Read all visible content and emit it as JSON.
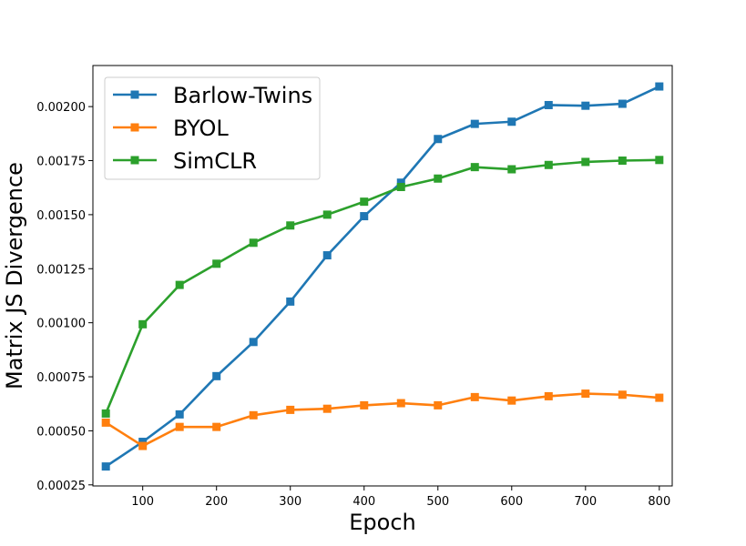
{
  "chart_data": {
    "type": "line",
    "xlabel": "Epoch",
    "ylabel": "Matrix JS Divergence",
    "xlim": [
      32.5,
      817.5
    ],
    "ylim": [
      0.000245,
      0.00219
    ],
    "xticks": [
      100,
      200,
      300,
      400,
      500,
      600,
      700,
      800
    ],
    "yticks": [
      0.00025,
      0.0005,
      0.00075,
      0.001,
      0.00125,
      0.0015,
      0.00175,
      0.002
    ],
    "ytick_labels": [
      "0.00025",
      "0.00050",
      "0.00075",
      "0.00100",
      "0.00125",
      "0.00150",
      "0.00175",
      "0.00200"
    ],
    "grid": false,
    "legend_position": "top-left",
    "x": [
      50,
      100,
      150,
      200,
      250,
      300,
      350,
      400,
      450,
      500,
      550,
      600,
      650,
      700,
      750,
      800
    ],
    "series": [
      {
        "name": "Barlow-Twins",
        "color": "#1f77b4",
        "marker": "square",
        "values": [
          0.000335,
          0.000449,
          0.000576,
          0.000753,
          0.000911,
          0.001098,
          0.001312,
          0.001493,
          0.001648,
          0.00185,
          0.00192,
          0.00193,
          0.002007,
          0.002004,
          0.002013,
          0.002093
        ]
      },
      {
        "name": "BYOL",
        "color": "#ff7f0e",
        "marker": "square",
        "values": [
          0.000538,
          0.00043,
          0.000518,
          0.000518,
          0.000572,
          0.000597,
          0.000602,
          0.000618,
          0.000628,
          0.000618,
          0.000656,
          0.00064,
          0.00066,
          0.000672,
          0.000667,
          0.000653
        ]
      },
      {
        "name": "SimCLR",
        "color": "#2ca02c",
        "marker": "square",
        "values": [
          0.00058,
          0.000993,
          0.001175,
          0.001273,
          0.00137,
          0.00145,
          0.0015,
          0.00156,
          0.001628,
          0.001667,
          0.00172,
          0.00171,
          0.00173,
          0.001744,
          0.00175,
          0.001753
        ]
      }
    ]
  }
}
